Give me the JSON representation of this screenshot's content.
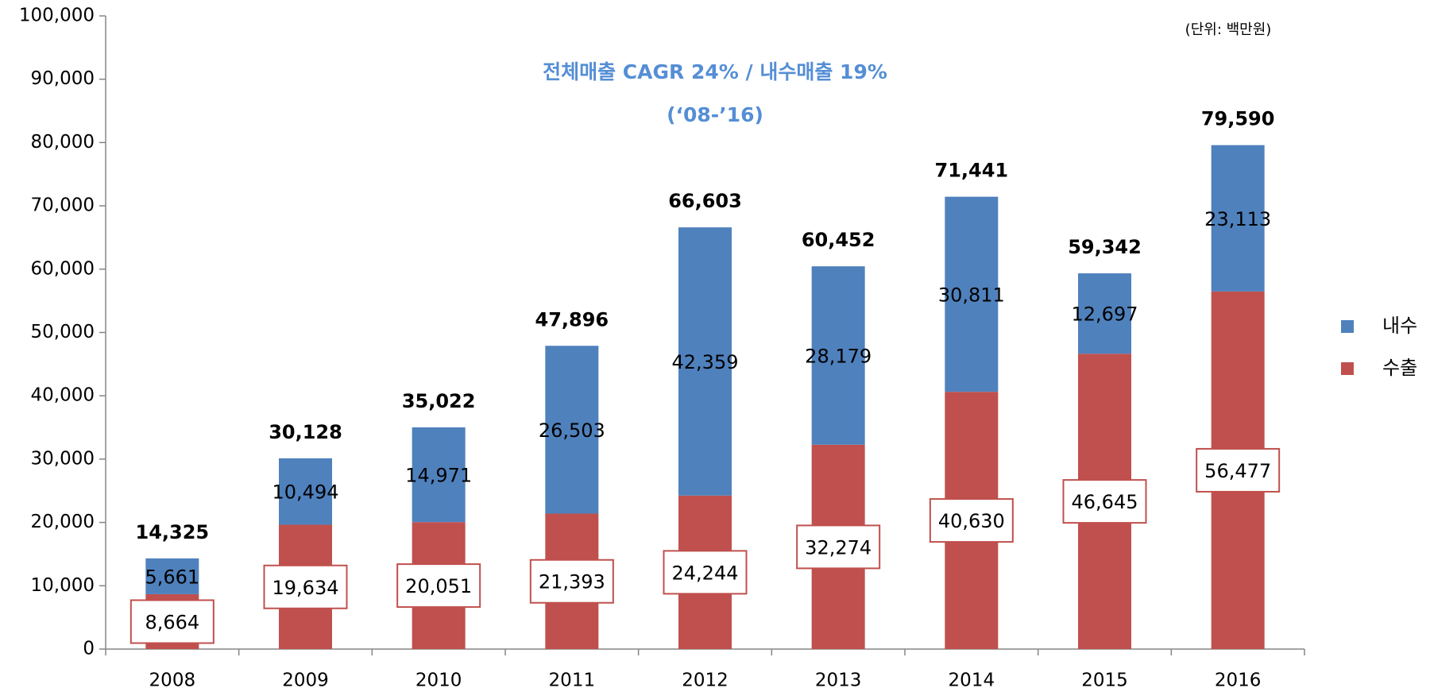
{
  "chart_data": {
    "type": "bar",
    "stacked": true,
    "annotations": [
      "전체매출 CAGR 24% / 내수매출 19%",
      "(‘08-’16)"
    ],
    "unit_note": "(단위: 백만원)",
    "categories": [
      "2008",
      "2009",
      "2010",
      "2011",
      "2012",
      "2013",
      "2014",
      "2015",
      "2016"
    ],
    "series": [
      {
        "name": "수출",
        "color": "#c0504d",
        "boxed_labels": true,
        "values": [
          8664,
          19634,
          20051,
          21393,
          24244,
          32274,
          40630,
          46645,
          56477
        ],
        "value_labels": [
          "8,664",
          "19,634",
          "20,051",
          "21,393",
          "24,244",
          "32,274",
          "40,630",
          "46,645",
          "56,477"
        ]
      },
      {
        "name": "내수",
        "color": "#4f81bd",
        "boxed_labels": false,
        "values": [
          5661,
          10494,
          14971,
          26503,
          42359,
          28179,
          30811,
          12697,
          23113
        ],
        "value_labels": [
          "5,661",
          "10,494",
          "14,971",
          "26,503",
          "42,359",
          "28,179",
          "30,811",
          "12,697",
          "23,113"
        ]
      }
    ],
    "total_labels": [
      "14,325",
      "30,128",
      "35,022",
      "47,896",
      "66,603",
      "60,452",
      "71,441",
      "59,342",
      "79,590"
    ],
    "ylim": [
      0,
      100000
    ],
    "yticks": [
      0,
      {
        "value": 10000,
        "label": "10,000"
      },
      {
        "value": 20000,
        "label": "20,000"
      },
      {
        "value": 30000,
        "label": "30,000"
      },
      {
        "value": 40000,
        "label": "40,000"
      },
      {
        "value": 50000,
        "label": "50,000"
      },
      {
        "value": 60000,
        "label": "60,000"
      },
      {
        "value": 70000,
        "label": "70,000"
      },
      {
        "value": 80000,
        "label": "80,000"
      },
      {
        "value": 90000,
        "label": "90,000"
      },
      {
        "value": 100000,
        "label": "100,000"
      }
    ],
    "legend": "right",
    "grid": false
  }
}
